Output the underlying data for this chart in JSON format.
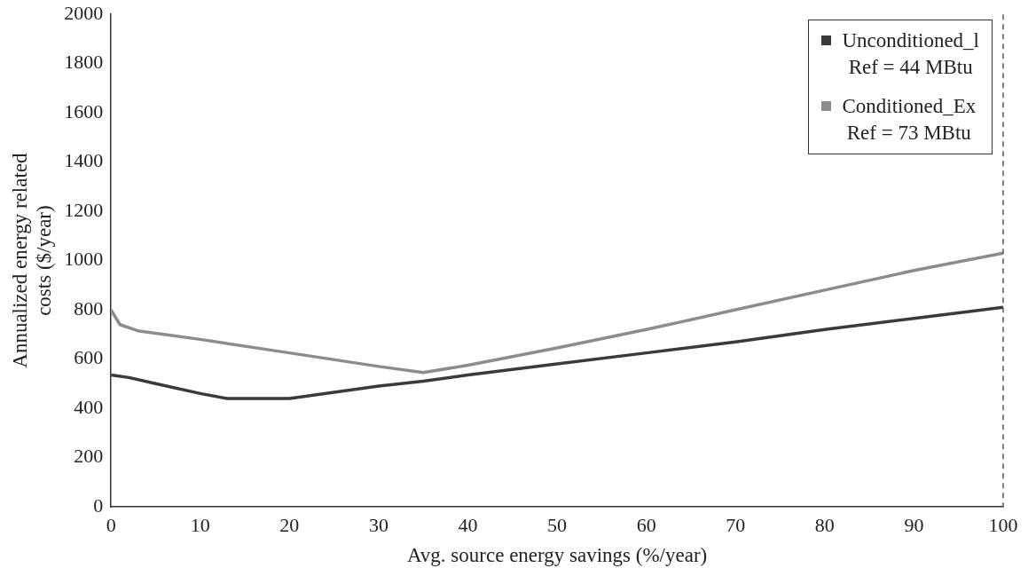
{
  "chart_data": {
    "type": "line",
    "xlabel": "Avg. source energy savings (%/year)",
    "ylabel": "Annualized energy related\ncosts ($/year)",
    "xlim": [
      0,
      100
    ],
    "xticks": [
      0,
      10,
      20,
      30,
      40,
      50,
      60,
      70,
      80,
      90,
      100
    ],
    "ylim": [
      0,
      2000
    ],
    "yticks": [
      0,
      200,
      400,
      600,
      800,
      1000,
      1200,
      1400,
      1600,
      1800,
      2000
    ],
    "grid": false,
    "legend": "top right",
    "marker": "none",
    "line_style": "solid",
    "ref_lines": [
      {
        "axis": "x",
        "value": 100,
        "color": "#555555",
        "line_style": "dashed"
      }
    ],
    "series": [
      {
        "name": "Unconditioned_l\nRef = 44 MBtu",
        "color": "#3a3a3a",
        "x": [
          0,
          2,
          5,
          10,
          13,
          20,
          30,
          35,
          40,
          50,
          60,
          70,
          80,
          90,
          100
        ],
        "values": [
          535,
          525,
          500,
          460,
          440,
          440,
          490,
          510,
          535,
          580,
          625,
          670,
          720,
          765,
          810
        ]
      },
      {
        "name": "Conditioned_Ex\nRef = 73 MBtu",
        "color": "#8c8c8c",
        "x": [
          0,
          1,
          3,
          10,
          20,
          30,
          35,
          40,
          50,
          60,
          70,
          80,
          90,
          100
        ],
        "values": [
          800,
          740,
          715,
          680,
          625,
          570,
          545,
          575,
          645,
          720,
          800,
          880,
          960,
          1030
        ]
      }
    ]
  }
}
